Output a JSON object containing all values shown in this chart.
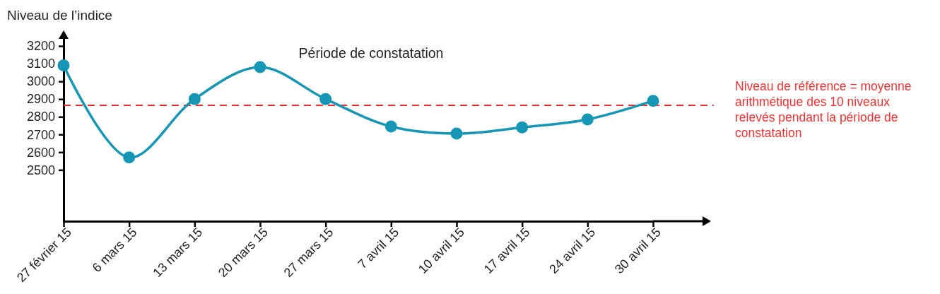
{
  "chart_data": {
    "type": "line",
    "ylabel": "Niveau de l’indice",
    "categories": [
      "27 février 15",
      "6 mars 15",
      "13 mars 15",
      "20 mars 15",
      "27 mars 15",
      "7 avril 15",
      "10 avril 15",
      "17 avril 15",
      "24 avril 15",
      "30 avril 15"
    ],
    "series": [
      {
        "color": "#1696b5",
        "values": [
          3090,
          2570,
          2900,
          3080,
          2900,
          2745,
          2705,
          2740,
          2785,
          2890
        ]
      }
    ],
    "ylim": [
      2210,
      3280
    ],
    "yticks": [
      2500,
      2600,
      2700,
      2800,
      2900,
      3000,
      3100,
      3200
    ],
    "marker": "circle",
    "ref_lines": [
      {
        "axis": "y",
        "value": 2865,
        "label": "Niveau de référence = moyenne arithmétique des 10 niveaux relevés pendant la période de constatation",
        "color": "#ee3333",
        "line_style": "dashed"
      }
    ],
    "annotations": [
      "Période de constatation"
    ]
  }
}
